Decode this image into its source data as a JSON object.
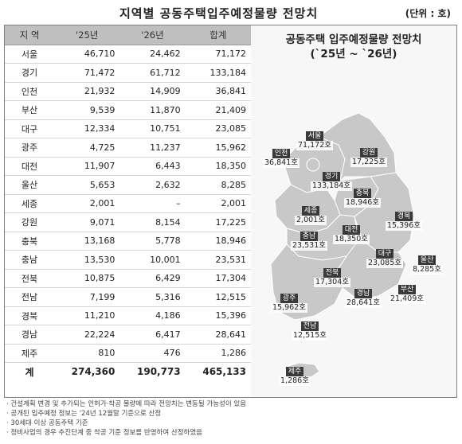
{
  "title": "지역별 공동주택입주예정물량 전망치",
  "unit": "(단위 : 호)",
  "table": {
    "headers": [
      "지 역",
      "'25년",
      "'26년",
      "합계"
    ],
    "rows": [
      {
        "region": "서울",
        "y25": "46,710",
        "y26": "24,462",
        "total": "71,172"
      },
      {
        "region": "경기",
        "y25": "71,472",
        "y26": "61,712",
        "total": "133,184"
      },
      {
        "region": "인천",
        "y25": "21,932",
        "y26": "14,909",
        "total": "36,841"
      },
      {
        "region": "부산",
        "y25": "9,539",
        "y26": "11,870",
        "total": "21,409"
      },
      {
        "region": "대구",
        "y25": "12,334",
        "y26": "10,751",
        "total": "23,085"
      },
      {
        "region": "광주",
        "y25": "4,725",
        "y26": "11,237",
        "total": "15,962"
      },
      {
        "region": "대전",
        "y25": "11,907",
        "y26": "6,443",
        "total": "18,350"
      },
      {
        "region": "울산",
        "y25": "5,653",
        "y26": "2,632",
        "total": "8,285"
      },
      {
        "region": "세종",
        "y25": "2,001",
        "y26": "–",
        "total": "2,001"
      },
      {
        "region": "강원",
        "y25": "9,071",
        "y26": "8,154",
        "total": "17,225"
      },
      {
        "region": "충북",
        "y25": "13,168",
        "y26": "5,778",
        "total": "18,946"
      },
      {
        "region": "충남",
        "y25": "13,530",
        "y26": "10,001",
        "total": "23,531"
      },
      {
        "region": "전북",
        "y25": "10,875",
        "y26": "6,429",
        "total": "17,304"
      },
      {
        "region": "전남",
        "y25": "7,199",
        "y26": "5,316",
        "total": "12,515"
      },
      {
        "region": "경북",
        "y25": "11,210",
        "y26": "4,186",
        "total": "15,396"
      },
      {
        "region": "경남",
        "y25": "22,224",
        "y26": "6,417",
        "total": "28,641"
      },
      {
        "region": "제주",
        "y25": "810",
        "y26": "476",
        "total": "1,286"
      }
    ],
    "total": {
      "region": "계",
      "y25": "274,360",
      "y26": "190,773",
      "total": "465,133"
    }
  },
  "map": {
    "title_line1": "공동주택 입주예정물량 전망치",
    "title_line2": "(`25년 ~ `26년)",
    "land_color": "#c8c8c8",
    "label_bg": "#3a3a3a",
    "labels": [
      {
        "name": "서울",
        "value": "71,172호"
      },
      {
        "name": "인천",
        "value": "36,841호"
      },
      {
        "name": "강원",
        "value": "17,225호"
      },
      {
        "name": "경기",
        "value": "133,184호"
      },
      {
        "name": "충북",
        "value": "18,946호"
      },
      {
        "name": "세종",
        "value": "2,001호"
      },
      {
        "name": "경북",
        "value": "15,396호"
      },
      {
        "name": "충남",
        "value": "23,531호"
      },
      {
        "name": "대전",
        "value": "18,350호"
      },
      {
        "name": "울산",
        "value": "8,285호"
      },
      {
        "name": "대구",
        "value": "23,085호"
      },
      {
        "name": "전북",
        "value": "17,304호"
      },
      {
        "name": "광주",
        "value": "15,962호"
      },
      {
        "name": "경남",
        "value": "28,641호"
      },
      {
        "name": "부산",
        "value": "21,409호"
      },
      {
        "name": "전남",
        "value": "12,515호"
      },
      {
        "name": "제주",
        "value": "1,286호"
      }
    ]
  },
  "notes": [
    "건설계획 변경 및 추가되는 인허가·착공 물량에 따라 전망치는 변동될 가능성이 있음",
    "공개된 입주예정 정보는 '24년 12월말 기준으로 산정",
    "30세대 이상 공동주택 기준",
    "정비사업의 경우 추진단계 중 착공 기준 정보를 반영하여 산정하였음"
  ]
}
